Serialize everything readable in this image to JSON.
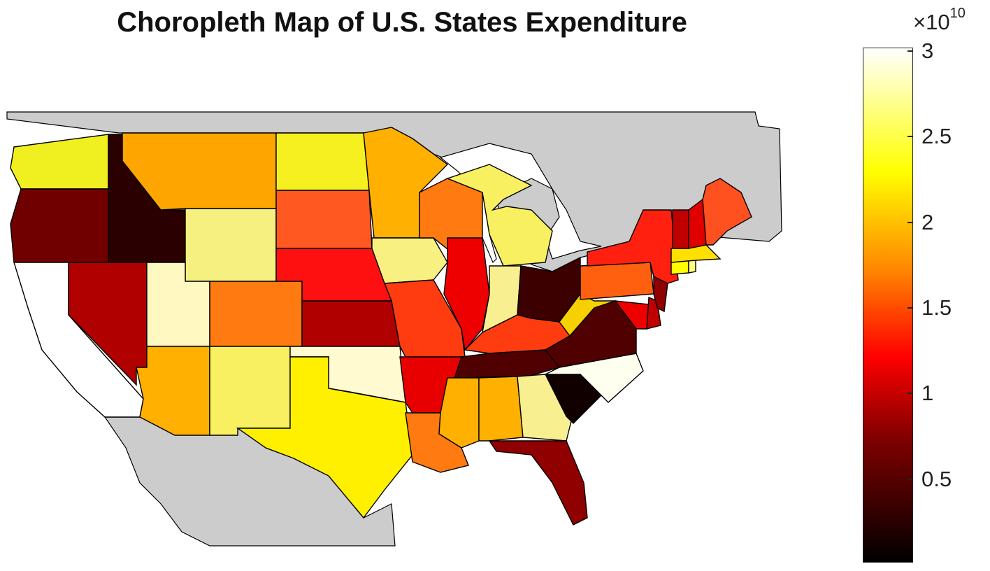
{
  "title": "Choropleth Map of U.S. States Expenditure",
  "colorbar": {
    "multiplier": "×10",
    "exponent": "10",
    "ticks": [
      {
        "value": 0.5,
        "label": "0.5"
      },
      {
        "value": 1,
        "label": "1"
      },
      {
        "value": 1.5,
        "label": "1.5"
      },
      {
        "value": 2,
        "label": "2"
      },
      {
        "value": 2.5,
        "label": "2.5"
      },
      {
        "value": 3,
        "label": "3"
      }
    ],
    "range": [
      0.02,
      3.02
    ],
    "colormap": "hot"
  },
  "colors": {
    "land_background": "#cccccc",
    "water": "#ffffff",
    "border": "#000000"
  },
  "map_data": {
    "type": "choropleth",
    "unit": "×10^10",
    "regions": [
      {
        "name": "Washington",
        "color": "#f0f020"
      },
      {
        "name": "Oregon",
        "color": "#700000"
      },
      {
        "name": "California",
        "color": "#ffffff"
      },
      {
        "name": "Idaho",
        "color": "#2a0000"
      },
      {
        "name": "Nevada",
        "color": "#b00000"
      },
      {
        "name": "Montana",
        "color": "#ffa500"
      },
      {
        "name": "Wyoming",
        "color": "#f6f080"
      },
      {
        "name": "Utah",
        "color": "#fff8c0"
      },
      {
        "name": "Arizona",
        "color": "#ffb000"
      },
      {
        "name": "Colorado",
        "color": "#ff7a10"
      },
      {
        "name": "New Mexico",
        "color": "#f8f060"
      },
      {
        "name": "North Dakota",
        "color": "#f6f020"
      },
      {
        "name": "South Dakota",
        "color": "#ff5820"
      },
      {
        "name": "Nebraska",
        "color": "#ff1010"
      },
      {
        "name": "Kansas",
        "color": "#b00000"
      },
      {
        "name": "Oklahoma",
        "color": "#fffad0"
      },
      {
        "name": "Texas",
        "color": "#fff000"
      },
      {
        "name": "Minnesota",
        "color": "#ffb000"
      },
      {
        "name": "Iowa",
        "color": "#f8f080"
      },
      {
        "name": "Missouri",
        "color": "#ff3c10"
      },
      {
        "name": "Arkansas",
        "color": "#e80000"
      },
      {
        "name": "Louisiana",
        "color": "#ff7a10"
      },
      {
        "name": "Wisconsin",
        "color": "#ff7a10"
      },
      {
        "name": "Illinois",
        "color": "#ee0000"
      },
      {
        "name": "Michigan",
        "color": "#f8f060"
      },
      {
        "name": "Indiana",
        "color": "#f8f090"
      },
      {
        "name": "Ohio",
        "color": "#3c0000"
      },
      {
        "name": "Kentucky",
        "color": "#ff3c10"
      },
      {
        "name": "Tennessee",
        "color": "#500000"
      },
      {
        "name": "Mississippi",
        "color": "#ffb000"
      },
      {
        "name": "Alabama",
        "color": "#ffb000"
      },
      {
        "name": "Georgia",
        "color": "#f8f090"
      },
      {
        "name": "Florida",
        "color": "#900000"
      },
      {
        "name": "South Carolina",
        "color": "#100000"
      },
      {
        "name": "North Carolina",
        "color": "#fffff0"
      },
      {
        "name": "Virginia",
        "color": "#500000"
      },
      {
        "name": "West Virginia",
        "color": "#f6d000"
      },
      {
        "name": "Maryland",
        "color": "#ee0000"
      },
      {
        "name": "Delaware",
        "color": "#c00000"
      },
      {
        "name": "Pennsylvania",
        "color": "#ff6010"
      },
      {
        "name": "New Jersey",
        "color": "#900000"
      },
      {
        "name": "New York",
        "color": "#ff2010"
      },
      {
        "name": "Connecticut",
        "color": "#ffff00"
      },
      {
        "name": "Rhode Island",
        "color": "#ffff80"
      },
      {
        "name": "Massachusetts",
        "color": "#ffe000"
      },
      {
        "name": "Vermont",
        "color": "#c00000"
      },
      {
        "name": "New Hampshire",
        "color": "#e00000"
      },
      {
        "name": "Maine",
        "color": "#ff5020"
      }
    ]
  }
}
